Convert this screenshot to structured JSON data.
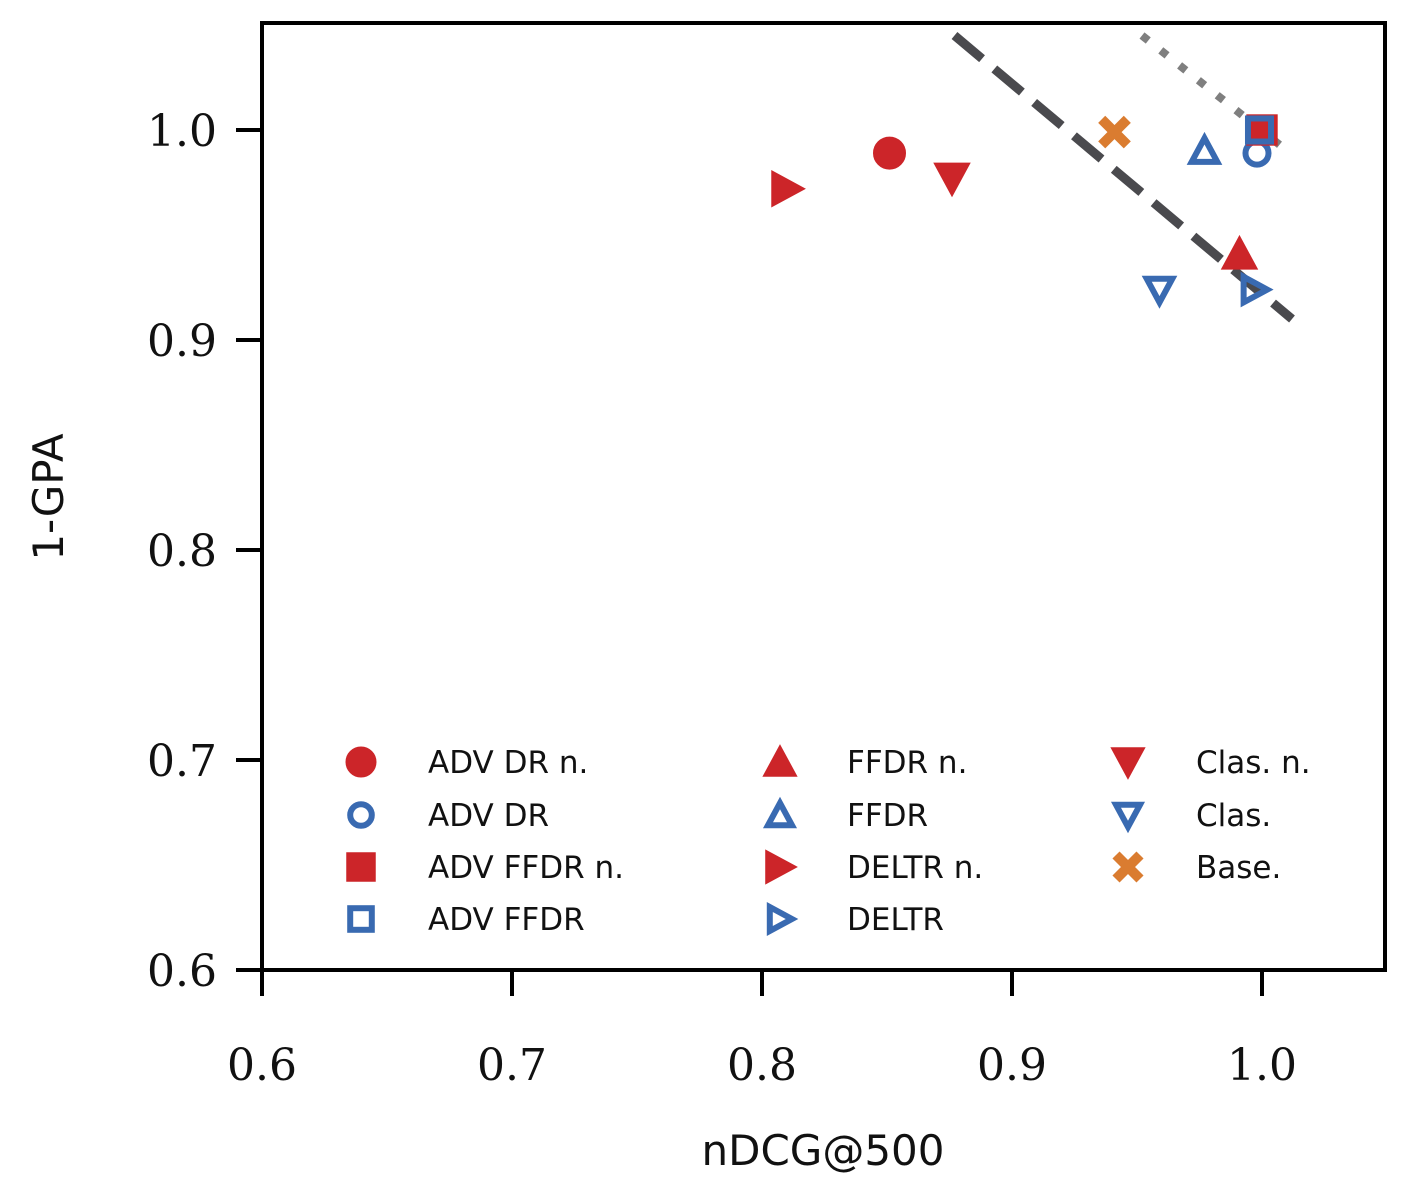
{
  "chart_data": {
    "type": "scatter",
    "xlabel": "nDCG@500",
    "ylabel": "1-GPA",
    "xlim": [
      0.6,
      1.05
    ],
    "ylim": [
      0.6,
      1.05
    ],
    "xticks": [
      "0.6",
      "0.7",
      "0.8",
      "0.9",
      "1.0"
    ],
    "xtick_values": [
      0.6,
      0.7,
      0.8,
      0.9,
      1.0
    ],
    "yticks": [
      "0.6",
      "0.7",
      "0.8",
      "0.9",
      "1.0"
    ],
    "ytick_values": [
      0.6,
      0.7,
      0.8,
      0.9,
      1.0
    ],
    "grid": false,
    "legend_position": "lower-center",
    "series": [
      {
        "name": "ADV DR n.",
        "marker": "circle",
        "filled": true,
        "color": "#cc2529",
        "points": [
          [
            0.851,
            0.989
          ]
        ]
      },
      {
        "name": "ADV DR",
        "marker": "circle",
        "filled": false,
        "color": "#396ab1",
        "points": [
          [
            0.998,
            0.989
          ]
        ]
      },
      {
        "name": "ADV FFDR n.",
        "marker": "square",
        "filled": true,
        "color": "#cc2529",
        "points": [
          [
            1.0,
            1.0
          ]
        ]
      },
      {
        "name": "ADV FFDR",
        "marker": "square",
        "filled": false,
        "color": "#396ab1",
        "points": [
          [
            0.999,
            1.0
          ]
        ]
      },
      {
        "name": "FFDR n.",
        "marker": "triangle-up",
        "filled": true,
        "color": "#cc2529",
        "points": [
          [
            0.991,
            0.941
          ]
        ]
      },
      {
        "name": "FFDR",
        "marker": "triangle-up",
        "filled": false,
        "color": "#396ab1",
        "points": [
          [
            0.977,
            0.99
          ]
        ]
      },
      {
        "name": "DELTR n.",
        "marker": "triangle-right",
        "filled": true,
        "color": "#cc2529",
        "points": [
          [
            0.81,
            0.972
          ]
        ]
      },
      {
        "name": "DELTR",
        "marker": "triangle-right",
        "filled": false,
        "color": "#396ab1",
        "points": [
          [
            0.997,
            0.924
          ]
        ]
      },
      {
        "name": "Clas. n.",
        "marker": "triangle-down",
        "filled": true,
        "color": "#cc2529",
        "points": [
          [
            0.876,
            0.977
          ]
        ]
      },
      {
        "name": "Clas.",
        "marker": "triangle-down",
        "filled": false,
        "color": "#396ab1",
        "points": [
          [
            0.959,
            0.924
          ]
        ]
      },
      {
        "name": "Base.",
        "marker": "x",
        "filled": true,
        "color": "#da7c30",
        "points": [
          [
            0.941,
            0.999
          ]
        ]
      }
    ],
    "reference_lines": [
      {
        "style": "dashed",
        "color": "#4a4a4e",
        "from": [
          0.877,
          1.045
        ],
        "to": [
          1.012,
          0.91
        ]
      },
      {
        "style": "dotted",
        "color": "#7f7f7f",
        "from": [
          0.952,
          1.045
        ],
        "to": [
          1.007,
          0.993
        ]
      }
    ]
  }
}
